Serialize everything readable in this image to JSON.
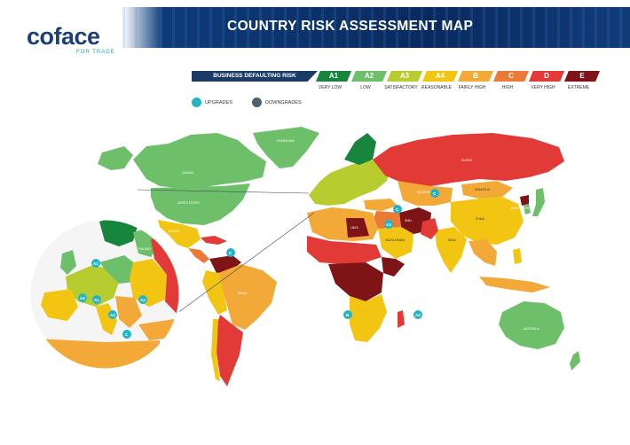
{
  "brand": {
    "name": "coface",
    "tagline": "FOR TRADE"
  },
  "header": {
    "title": "COUNTRY RISK ASSESSMENT MAP"
  },
  "legend": {
    "heading": "BUSINESS DEFAULTING RISK",
    "categories": [
      {
        "code": "A1",
        "label": "VERY LOW",
        "color": "#17853b"
      },
      {
        "code": "A2",
        "label": "LOW",
        "color": "#6dbf6a"
      },
      {
        "code": "A3",
        "label": "SATISFACTORY",
        "color": "#b7cc2e"
      },
      {
        "code": "A4",
        "label": "REASONABLE",
        "color": "#f1c512"
      },
      {
        "code": "B",
        "label": "FAIRLY HIGH",
        "color": "#f3a937"
      },
      {
        "code": "C",
        "label": "HIGH",
        "color": "#ec7a36"
      },
      {
        "code": "D",
        "label": "VERY HIGH",
        "color": "#e23a36"
      },
      {
        "code": "E",
        "label": "EXTREME",
        "color": "#7f1417"
      }
    ],
    "upgrades": {
      "label": "UPGRADES",
      "color": "#25b4c4"
    },
    "downgrades": {
      "label": "DOWNGRADES",
      "color": "#4e6170"
    }
  },
  "countries": {
    "russia": "RUSSIA",
    "canada": "CANADA",
    "united_states": "UNITED STATES",
    "mexico": "MEXICO",
    "brazil": "BRAZIL",
    "china": "CHINA",
    "india": "INDIA",
    "kazakhstan": "KAZAKHSTAN",
    "mongolia": "MONGOLIA",
    "australia": "AUSTRALIA",
    "libya": "LIBYA",
    "iran": "IRAN",
    "saudi_arabia": "SAUDI ARABIA",
    "greenland": "GREENLAND",
    "finland": "FINLAND",
    "south_korea": "SOUTH KOREA"
  },
  "markers": {
    "m1": {
      "grade": "C",
      "type": "upgrade"
    },
    "m2": {
      "grade": "A3",
      "type": "upgrade"
    },
    "m3": {
      "grade": "C",
      "type": "upgrade"
    },
    "m4": {
      "grade": "C",
      "type": "upgrade"
    },
    "m5": {
      "grade": "B",
      "type": "upgrade"
    },
    "m6": {
      "grade": "A4",
      "type": "upgrade"
    },
    "m7": {
      "grade": "A1",
      "type": "upgrade"
    },
    "m8": {
      "grade": "A3",
      "type": "upgrade"
    },
    "m9": {
      "grade": "A1",
      "type": "upgrade"
    },
    "m10": {
      "grade": "A3",
      "type": "upgrade"
    },
    "m11": {
      "grade": "A4",
      "type": "upgrade"
    },
    "m12": {
      "grade": "C",
      "type": "upgrade"
    }
  }
}
